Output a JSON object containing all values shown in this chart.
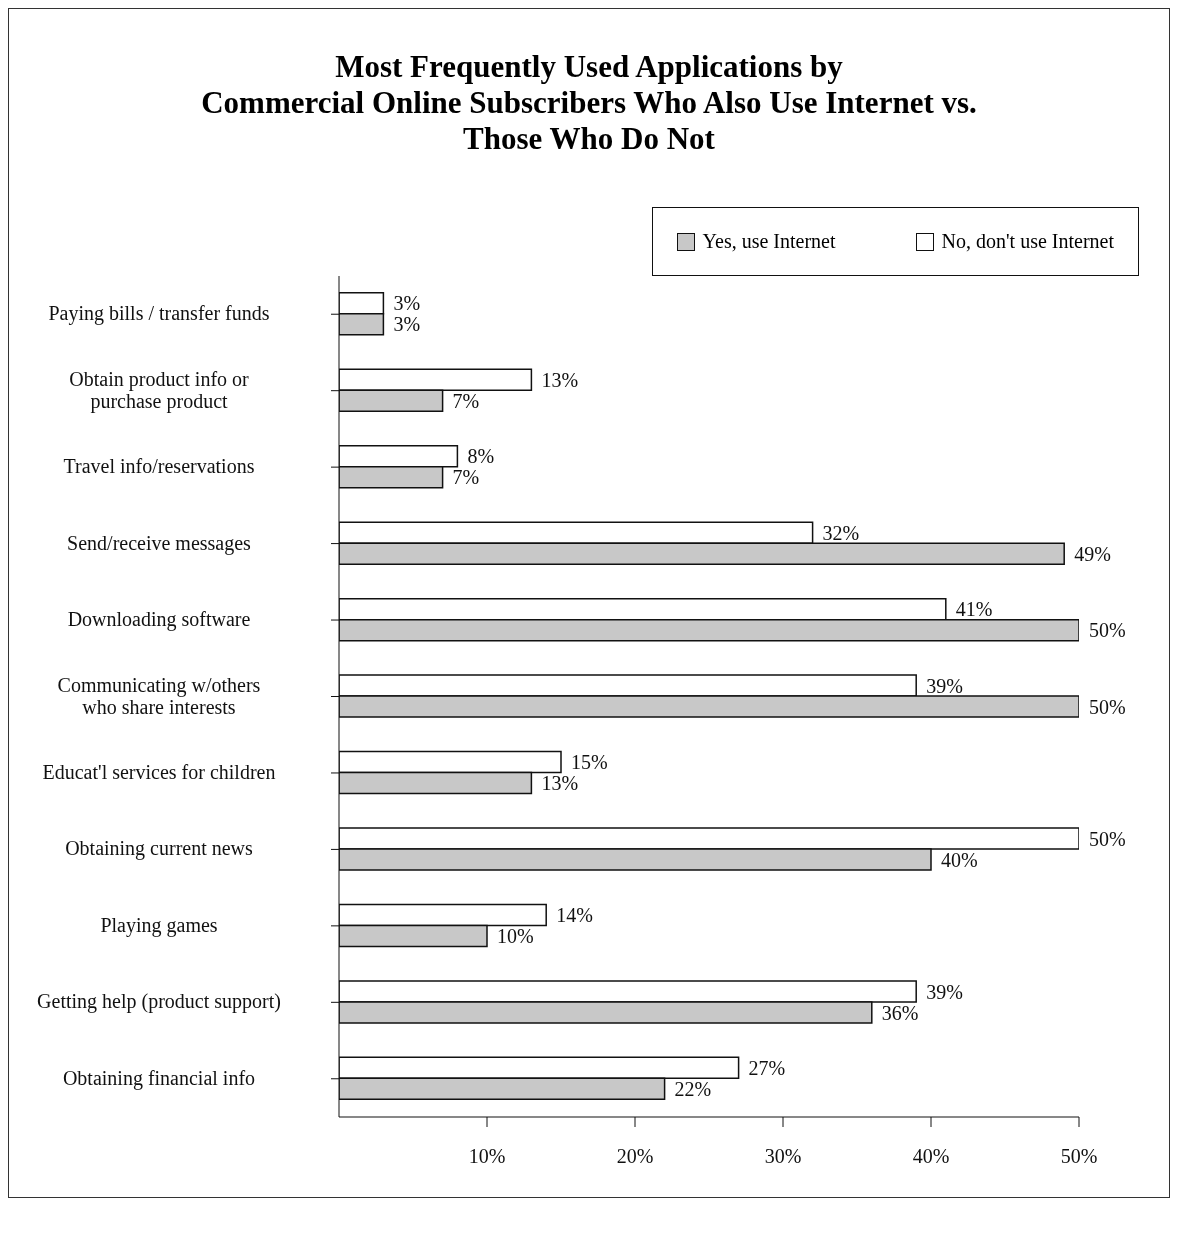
{
  "chart_data": {
    "type": "bar",
    "orientation": "horizontal",
    "title": "Most Frequently Used Applications by\nCommercial Online Subscribers Who Also Use Internet vs.\nThose Who Do Not",
    "categories": [
      "Paying bills / transfer funds",
      "Obtain product info or\npurchase product",
      "Travel info/reservations",
      "Send/receive messages",
      "Downloading software",
      "Communicating w/others\nwho share interests",
      "Educat'l services for children",
      "Obtaining current news",
      "Playing games",
      "Getting help (product support)",
      "Obtaining financial info"
    ],
    "series": [
      {
        "name": "Yes, use Internet",
        "color": "#c8c8c8",
        "values": [
          3,
          7,
          7,
          49,
          50,
          50,
          13,
          40,
          10,
          36,
          22
        ],
        "value_labels": [
          "3%",
          "7%",
          "7%",
          "49%",
          "50%",
          "50%",
          "13%",
          "40%",
          "10%",
          "36%",
          "22%"
        ]
      },
      {
        "name": "No, don't use Internet",
        "color": "#ffffff",
        "values": [
          3,
          13,
          8,
          32,
          41,
          39,
          15,
          50,
          14,
          39,
          27
        ],
        "value_labels": [
          "3%",
          "13%",
          "8%",
          "32%",
          "41%",
          "39%",
          "15%",
          "50%",
          "14%",
          "39%",
          "27%"
        ]
      }
    ],
    "xlim": [
      0,
      50
    ],
    "xticks": [
      {
        "value": 10,
        "label": "10%"
      },
      {
        "value": 20,
        "label": "20%"
      },
      {
        "value": 30,
        "label": "30%"
      },
      {
        "value": 40,
        "label": "40%"
      },
      {
        "value": 50,
        "label": "50%"
      }
    ],
    "grid": false,
    "legend": "top right"
  }
}
